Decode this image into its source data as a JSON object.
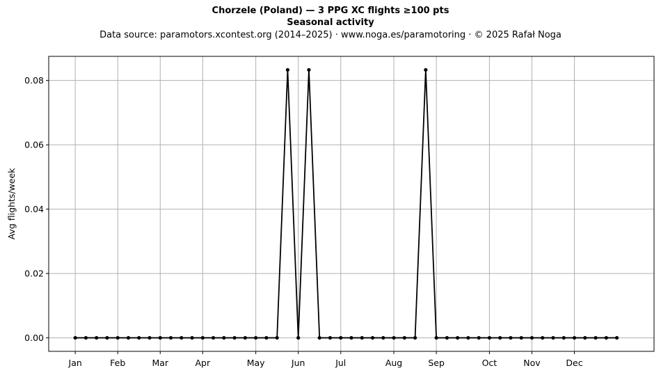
{
  "chart_data": {
    "type": "line",
    "title": "Chorzele (Poland)  —  3 PPG XC flights ≥100 pts",
    "title_line2": "Seasonal activity",
    "subtitle": "Data source: paramotors.xcontest.org (2014–2025)  ·  www.noga.es/paramotoring  ·  © 2025 Rafał Noga",
    "xlabel": "",
    "ylabel": "Avg flights/week",
    "x_unit": "week of year",
    "x_ticks": [
      {
        "label": "Jan",
        "x": 1
      },
      {
        "label": "Feb",
        "x": 5
      },
      {
        "label": "Mar",
        "x": 9
      },
      {
        "label": "Apr",
        "x": 13
      },
      {
        "label": "May",
        "x": 18
      },
      {
        "label": "Jun",
        "x": 22
      },
      {
        "label": "Jul",
        "x": 26
      },
      {
        "label": "Aug",
        "x": 31
      },
      {
        "label": "Sep",
        "x": 35
      },
      {
        "label": "Oct",
        "x": 40
      },
      {
        "label": "Nov",
        "x": 44
      },
      {
        "label": "Dec",
        "x": 48
      }
    ],
    "y_ticks": [
      0.0,
      0.02,
      0.04,
      0.06,
      0.08
    ],
    "y_tick_labels": [
      "0.00",
      "0.02",
      "0.04",
      "0.06",
      "0.08"
    ],
    "xlim": [
      -1.5,
      55.5
    ],
    "ylim": [
      -0.0042,
      0.0875
    ],
    "grid": true,
    "series": [
      {
        "color": "#000000",
        "marker": "circle",
        "x": [
          1,
          2,
          3,
          4,
          5,
          6,
          7,
          8,
          9,
          10,
          11,
          12,
          13,
          14,
          15,
          16,
          17,
          18,
          19,
          20,
          21,
          22,
          23,
          24,
          25,
          26,
          27,
          28,
          29,
          30,
          31,
          32,
          33,
          34,
          35,
          36,
          37,
          38,
          39,
          40,
          41,
          42,
          43,
          44,
          45,
          46,
          47,
          48,
          49,
          50,
          51,
          52
        ],
        "values": [
          0,
          0,
          0,
          0,
          0,
          0,
          0,
          0,
          0,
          0,
          0,
          0,
          0,
          0,
          0,
          0,
          0,
          0,
          0,
          0,
          0.0833,
          0,
          0.0833,
          0,
          0,
          0,
          0,
          0,
          0,
          0,
          0,
          0,
          0,
          0.0833,
          0,
          0,
          0,
          0,
          0,
          0,
          0,
          0,
          0,
          0,
          0,
          0,
          0,
          0,
          0,
          0,
          0,
          0
        ]
      }
    ]
  }
}
